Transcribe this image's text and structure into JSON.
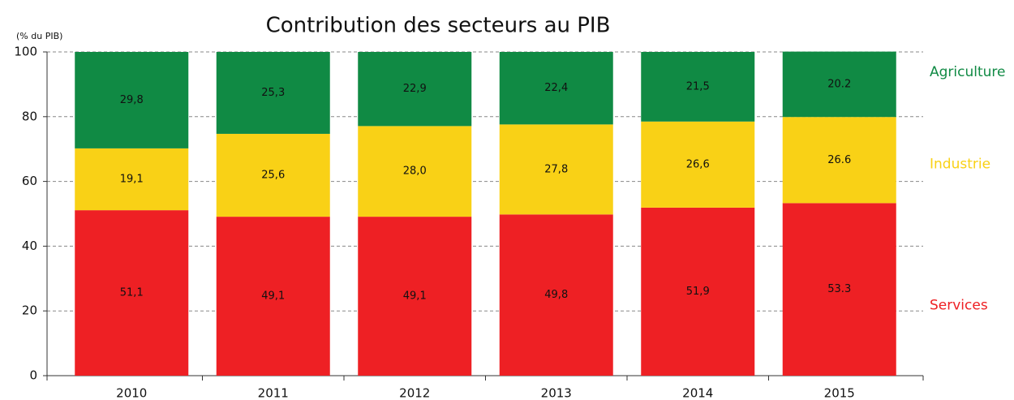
{
  "chart_data": {
    "type": "stacked-bar",
    "title": "Contribution des secteurs au PIB",
    "y_label": "(% du PIB)",
    "categories": [
      "2010",
      "2011",
      "2012",
      "2013",
      "2014",
      "2015"
    ],
    "series": [
      {
        "name": "Services",
        "color": "#ee2024",
        "values": [
          51.1,
          49.1,
          49.1,
          49.8,
          51.9,
          53.3
        ],
        "value_labels": [
          "51,1",
          "49,1",
          "49,1",
          "49,8",
          "51,9",
          "53.3"
        ]
      },
      {
        "name": "Industrie",
        "color": "#f9d116",
        "values": [
          19.1,
          25.6,
          28.0,
          27.8,
          26.6,
          26.6
        ],
        "value_labels": [
          "19,1",
          "25,6",
          "28,0",
          "27,8",
          "26,6",
          "26.6"
        ]
      },
      {
        "name": "Agriculture",
        "color": "#108a44",
        "values": [
          29.8,
          25.3,
          22.9,
          22.4,
          21.5,
          20.2
        ],
        "value_labels": [
          "29,8",
          "25,3",
          "22,9",
          "22,4",
          "21,5",
          "20.2"
        ]
      }
    ],
    "ylim": [
      0,
      100
    ],
    "yticks": [
      0,
      20,
      40,
      60,
      80,
      100
    ],
    "grid": true,
    "legend": "right"
  }
}
